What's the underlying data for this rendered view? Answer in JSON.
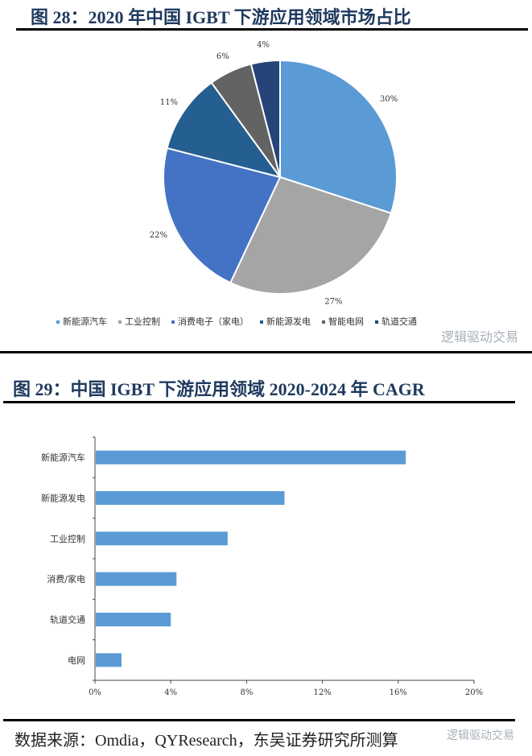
{
  "chart_data": [
    {
      "type": "pie",
      "title": "图 28：2020 年中国 IGBT 下游应用领域市场占比",
      "categories": [
        "新能源汽车",
        "工业控制",
        "消费电子（家电）",
        "新能源发电",
        "智能电网",
        "轨道交通"
      ],
      "values": [
        30,
        27,
        22,
        11,
        6,
        4
      ],
      "labels": [
        "30%",
        "27%",
        "22%",
        "11%",
        "6%",
        "4%"
      ],
      "colors": [
        "#5b9bd5",
        "#a5a5a5",
        "#4472c4",
        "#255e91",
        "#636363",
        "#264478"
      ],
      "legend_placement": "bottom"
    },
    {
      "type": "bar",
      "orientation": "horizontal",
      "title": "图 29：中国 IGBT 下游应用领域 2020-2024 年 CAGR",
      "categories": [
        "新能源汽车",
        "新能源发电",
        "工业控制",
        "消费/家电",
        "轨道交通",
        "电网"
      ],
      "values": [
        16.4,
        10.0,
        7.0,
        4.3,
        4.0,
        1.4
      ],
      "unit": "%",
      "xlim": [
        0,
        20
      ],
      "xticks": [
        "0%",
        "4%",
        "8%",
        "12%",
        "16%",
        "20%"
      ],
      "color": "#5b9bd5",
      "grid": false
    }
  ],
  "source": "数据来源：Omdia，QYResearch，东吴证券研究所测算",
  "watermark": "逻辑驱动交易"
}
